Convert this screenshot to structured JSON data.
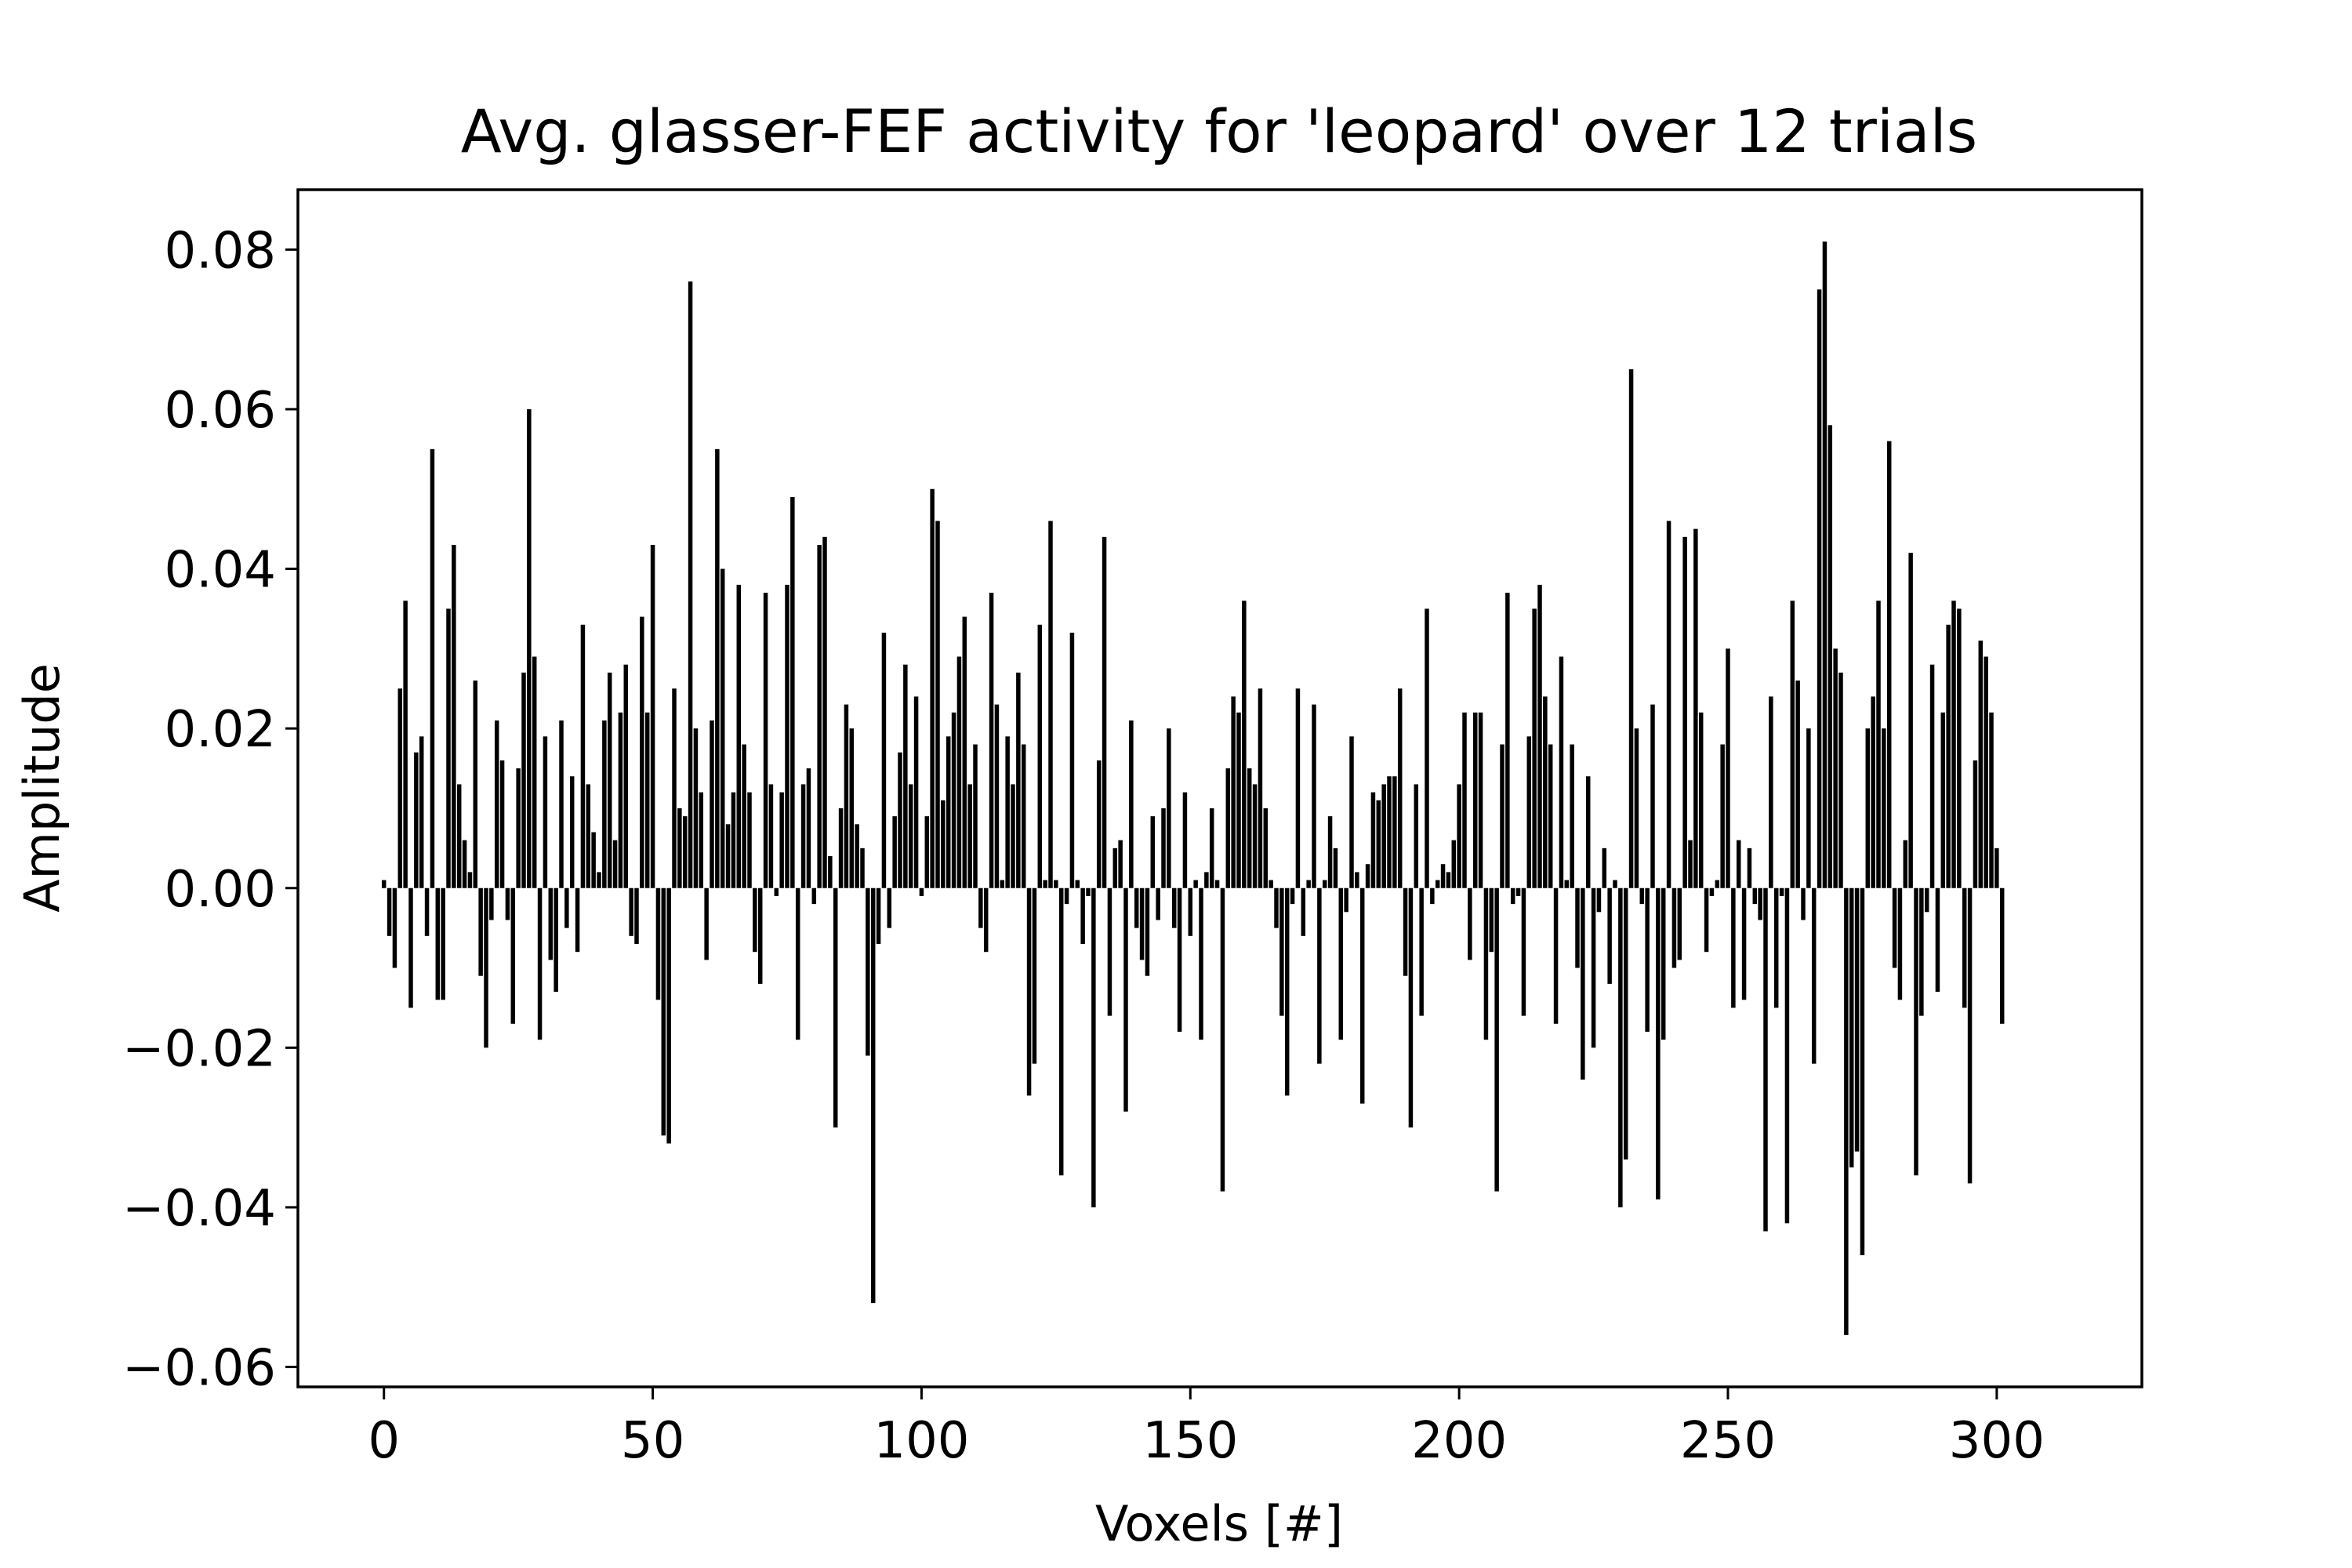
{
  "chart_data": {
    "type": "bar",
    "title": "Avg. glasser-FEF activity for 'leopard' over 12 trials",
    "xlabel": "Voxels [#]",
    "ylabel": "Amplitude",
    "xlim": [
      -16,
      327
    ],
    "ylim": [
      -0.0625,
      0.0875
    ],
    "xticks": [
      0,
      50,
      100,
      150,
      200,
      250,
      300
    ],
    "xtick_labels": [
      "0",
      "50",
      "100",
      "150",
      "200",
      "250",
      "300"
    ],
    "yticks": [
      -0.06,
      -0.04,
      -0.02,
      0.0,
      0.02,
      0.04,
      0.06,
      0.08
    ],
    "ytick_labels": [
      "−0.06",
      "−0.04",
      "−0.02",
      "0.00",
      "0.02",
      "0.04",
      "0.06",
      "0.08"
    ],
    "grid": false,
    "bar_color": "#000000",
    "values": [
      0.001,
      -0.006,
      -0.01,
      0.025,
      0.036,
      -0.015,
      0.017,
      0.019,
      -0.006,
      0.055,
      -0.014,
      -0.014,
      0.035,
      0.043,
      0.013,
      0.006,
      0.002,
      0.026,
      -0.011,
      -0.02,
      -0.004,
      0.021,
      0.016,
      -0.004,
      -0.017,
      0.015,
      0.027,
      0.06,
      0.029,
      -0.019,
      0.019,
      -0.009,
      -0.013,
      0.021,
      -0.005,
      0.014,
      -0.008,
      0.033,
      0.013,
      0.007,
      0.002,
      0.021,
      0.027,
      0.006,
      0.022,
      0.028,
      -0.006,
      -0.007,
      0.034,
      0.022,
      0.043,
      -0.014,
      -0.031,
      -0.032,
      0.025,
      0.01,
      0.009,
      0.076,
      0.02,
      0.012,
      -0.009,
      0.021,
      0.055,
      0.04,
      0.008,
      0.012,
      0.038,
      0.018,
      0.012,
      -0.008,
      -0.012,
      0.037,
      0.013,
      -0.001,
      0.012,
      0.038,
      0.049,
      -0.019,
      0.013,
      0.015,
      -0.002,
      0.043,
      0.044,
      0.004,
      -0.03,
      0.01,
      0.023,
      0.02,
      0.008,
      0.005,
      -0.021,
      -0.052,
      -0.007,
      0.032,
      -0.005,
      0.009,
      0.017,
      0.028,
      0.013,
      0.024,
      -0.001,
      0.009,
      0.05,
      0.046,
      0.011,
      0.019,
      0.022,
      0.029,
      0.034,
      0.013,
      0.018,
      -0.005,
      -0.008,
      0.037,
      0.023,
      0.001,
      0.019,
      0.013,
      0.027,
      0.018,
      -0.026,
      -0.022,
      0.033,
      0.001,
      0.046,
      0.001,
      -0.036,
      -0.002,
      0.032,
      0.001,
      -0.007,
      -0.001,
      -0.04,
      0.016,
      0.044,
      -0.016,
      0.005,
      0.006,
      -0.028,
      0.021,
      -0.005,
      -0.009,
      -0.011,
      0.009,
      -0.004,
      0.01,
      0.02,
      -0.005,
      -0.018,
      0.012,
      -0.006,
      0.001,
      -0.019,
      0.002,
      0.01,
      0.001,
      -0.038,
      0.015,
      0.024,
      0.022,
      0.036,
      0.015,
      0.013,
      0.025,
      0.01,
      0.001,
      -0.005,
      -0.016,
      -0.026,
      -0.002,
      0.025,
      -0.006,
      0.001,
      0.023,
      -0.022,
      0.001,
      0.009,
      0.005,
      -0.019,
      -0.003,
      0.019,
      0.002,
      -0.027,
      0.003,
      0.012,
      0.011,
      0.013,
      0.014,
      0.014,
      0.025,
      -0.011,
      -0.03,
      0.013,
      -0.016,
      0.035,
      -0.002,
      0.001,
      0.003,
      0.002,
      0.006,
      0.013,
      0.022,
      -0.009,
      0.022,
      0.022,
      -0.019,
      -0.008,
      -0.038,
      0.018,
      0.037,
      -0.002,
      -0.001,
      -0.016,
      0.019,
      0.035,
      0.038,
      0.024,
      0.018,
      -0.017,
      0.029,
      0.001,
      0.018,
      -0.01,
      -0.024,
      0.014,
      -0.02,
      -0.003,
      0.005,
      -0.012,
      0.001,
      -0.04,
      -0.034,
      0.065,
      0.02,
      -0.002,
      -0.018,
      0.023,
      -0.039,
      -0.019,
      0.046,
      -0.01,
      -0.009,
      0.044,
      0.006,
      0.045,
      0.022,
      -0.008,
      -0.001,
      0.001,
      0.018,
      0.03,
      -0.015,
      0.006,
      -0.014,
      0.005,
      -0.002,
      -0.004,
      -0.043,
      0.024,
      -0.015,
      -0.001,
      -0.042,
      0.036,
      0.026,
      -0.004,
      0.02,
      -0.022,
      0.075,
      0.081,
      0.058,
      0.03,
      0.027,
      -0.056,
      -0.035,
      -0.033,
      -0.046,
      0.02,
      0.024,
      0.036,
      0.02,
      0.056,
      -0.01,
      -0.014,
      0.006,
      0.042,
      -0.036,
      -0.016,
      -0.003,
      0.028,
      -0.013,
      0.022,
      0.033,
      0.036,
      0.035,
      -0.015,
      -0.037,
      0.016,
      0.031,
      0.029,
      0.022,
      0.005,
      -0.017
    ]
  }
}
